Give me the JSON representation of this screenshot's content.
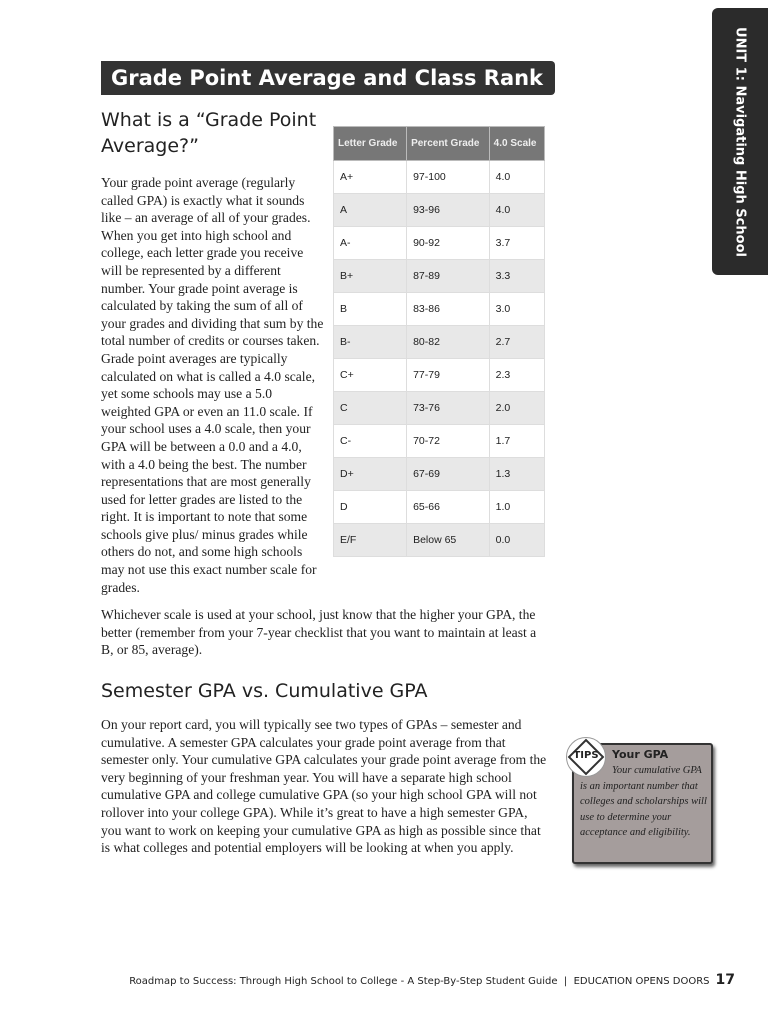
{
  "header": {
    "title": "Grade Point Average and Class Rank",
    "side_tab": "UNIT 1: Navigating High School"
  },
  "section1": {
    "heading": "What is a “Grade Point Average?”",
    "paragraph1": "Your grade point average (regularly called GPA) is exactly what it sounds like – an average of all of your grades. When you get into high school and college, each letter grade you receive will be represented by a different number. Your grade point average is calculated by taking the sum of all of your grades and dividing that sum by the total number of credits or courses taken. Grade point averages are typically calculated on what is called a 4.0 scale, yet some schools may use a 5.0 weighted GPA or even an 11.0 scale. If your school uses a 4.0 scale, then your GPA will be between a 0.0 and a 4.0, with a 4.0 being the best. The number representations that are most generally used for letter grades are listed to the right. It is important to note that some schools give plus/ minus grades while others do not, and some high schools may not use this exact number scale for grades.",
    "paragraph2": "Whichever scale is used at your school, just know that the higher your GPA, the better (remember from your 7-year checklist that you want to maintain at least a B, or 85, average)."
  },
  "grade_table": {
    "headers": [
      "Letter Grade",
      "Percent Grade",
      "4.0 Scale"
    ],
    "rows": [
      [
        "A+",
        "97-100",
        "4.0"
      ],
      [
        "A",
        "93-96",
        "4.0"
      ],
      [
        "A-",
        "90-92",
        "3.7"
      ],
      [
        "B+",
        "87-89",
        "3.3"
      ],
      [
        "B",
        "83-86",
        "3.0"
      ],
      [
        "B-",
        "80-82",
        "2.7"
      ],
      [
        "C+",
        "77-79",
        "2.3"
      ],
      [
        "C",
        "73-76",
        "2.0"
      ],
      [
        "C-",
        "70-72",
        "1.7"
      ],
      [
        "D+",
        "67-69",
        "1.3"
      ],
      [
        "D",
        "65-66",
        "1.0"
      ],
      [
        "E/F",
        "Below 65",
        "0.0"
      ]
    ]
  },
  "section2": {
    "heading": "Semester GPA vs. Cumulative GPA",
    "paragraph": "On your report card, you will typically see two types of GPAs – semester and cumulative. A semester GPA calculates your grade point average from that semester only. Your cumulative GPA calculates your grade point average from the very beginning of your freshman year. You will have a separate high school cumulative GPA and college cumulative GPA (so your high school GPA will not rollover into your college GPA). While it’s great to have a high semester GPA, you want to work on keeping your cumulative GPA as high as possible since that is what colleges and potential employers will be looking at when you apply."
  },
  "tips": {
    "badge": "TIPS",
    "title": "Your GPA",
    "body": "Your cumulative GPA is an important number that colleges and scholarships will use to determine your acceptance and eligibility."
  },
  "footer": {
    "text": "Roadmap to Success: Through High School to College - A Step-By-Step Student Guide  |  EDUCATION OPENS DOORS",
    "page_number": "17"
  }
}
